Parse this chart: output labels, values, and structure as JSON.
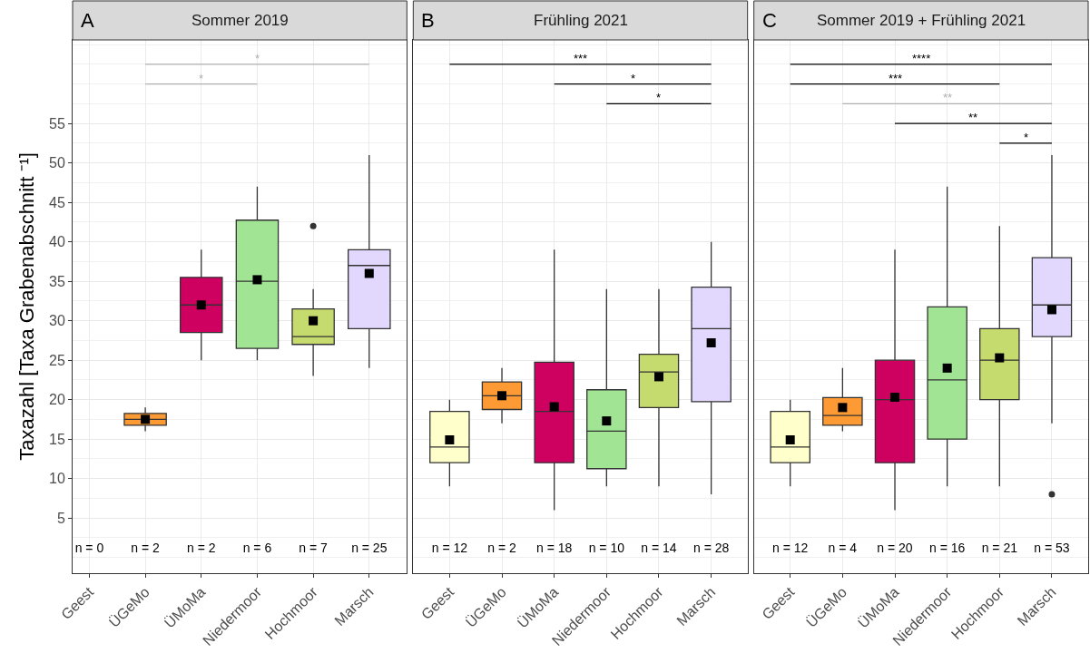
{
  "chart_data": [
    {
      "type": "box",
      "title": "Sommer 2019",
      "ylabel": "Taxazahl [Taxa Grabenabschnitt ⁻¹]",
      "categories": [
        "Geest",
        "ÜGeMo",
        "ÜMoMa",
        "Niedermoor",
        "Hochmoor",
        "Marsch"
      ],
      "colors": [
        null,
        "#fd9a33",
        "#ce0060",
        "#a1e494",
        "#c6db6e",
        "#e2d8fe"
      ],
      "boxes": [
        null,
        {
          "low": 16,
          "q1": 16.75,
          "median": 17.5,
          "q3": 18.25,
          "high": 19,
          "mean": 17.5
        },
        {
          "low": 25,
          "q1": 28.5,
          "median": 32,
          "q3": 35.5,
          "high": 39,
          "mean": 32
        },
        {
          "low": 25,
          "q1": 26.5,
          "median": 35,
          "q3": 42.75,
          "high": 47,
          "mean": 35.2
        },
        {
          "low": 23,
          "q1": 27,
          "median": 28,
          "q3": 31.5,
          "high": 34,
          "mean": 30,
          "outliers": [
            42
          ]
        },
        {
          "low": 24,
          "q1": 29,
          "median": 37,
          "q3": 39,
          "high": 51,
          "mean": 36
        }
      ],
      "series": [
        {
          "type": "line",
          "x": [
            "ÜGeMo",
            "Marsch"
          ],
          "values": [
            62.5,
            62.5
          ],
          "color": "#b0b0b0",
          "marker": "none"
        },
        {
          "type": "line",
          "x": [
            "ÜGeMo",
            "Niedermoor"
          ],
          "values": [
            60,
            60
          ],
          "color": "#b0b0b0",
          "marker": "none"
        }
      ],
      "annotations": [
        "A",
        "n = 0",
        "n = 2",
        "n = 2",
        "n = 6",
        "n = 7",
        "n = 25",
        {
          "text": "*",
          "x": "Niedermoor",
          "y": 62.5
        },
        {
          "text": "*",
          "x": "ÜMoMa",
          "y": 60
        }
      ],
      "ylim": [
        -2,
        65.6
      ],
      "yticks": [
        5,
        10,
        15,
        20,
        25,
        30,
        35,
        40,
        45,
        50,
        55
      ],
      "grid": true,
      "marker": "square"
    },
    {
      "type": "box",
      "title": "Frühling 2021",
      "categories": [
        "Geest",
        "ÜGeMo",
        "ÜMoMa",
        "Niedermoor",
        "Hochmoor",
        "Marsch"
      ],
      "colors": [
        "#ffffcc",
        "#fd9a33",
        "#ce0060",
        "#a1e494",
        "#c6db6e",
        "#e2d8fe"
      ],
      "boxes": [
        {
          "low": 9,
          "q1": 12,
          "median": 14,
          "q3": 18.5,
          "high": 20,
          "mean": 14.9
        },
        {
          "low": 17,
          "q1": 18.75,
          "median": 20.5,
          "q3": 22.25,
          "high": 24,
          "mean": 20.5
        },
        {
          "low": 6,
          "q1": 12,
          "median": 18.5,
          "q3": 24.75,
          "high": 39,
          "mean": 19.1
        },
        {
          "low": 9,
          "q1": 11.25,
          "median": 16,
          "q3": 21.25,
          "high": 34,
          "mean": 17.3
        },
        {
          "low": 9,
          "q1": 19,
          "median": 23.5,
          "q3": 25.75,
          "high": 34,
          "mean": 22.9
        },
        {
          "low": 8,
          "q1": 19.75,
          "median": 29,
          "q3": 34.25,
          "high": 40,
          "mean": 27.2
        }
      ],
      "series": [
        {
          "type": "line",
          "x": [
            "Geest",
            "Marsch"
          ],
          "values": [
            62.5,
            62.5
          ],
          "color": "#000000",
          "marker": "none"
        },
        {
          "type": "line",
          "x": [
            "ÜMoMa",
            "Marsch"
          ],
          "values": [
            60,
            60
          ],
          "color": "#000000",
          "marker": "none"
        },
        {
          "type": "line",
          "x": [
            "Niedermoor",
            "Marsch"
          ],
          "values": [
            57.5,
            57.5
          ],
          "color": "#000000",
          "marker": "none"
        }
      ],
      "annotations": [
        "B",
        "n = 12",
        "n = 2",
        "n = 18",
        "n = 10",
        "n = 14",
        "n = 28",
        {
          "text": "***",
          "y": 62.5
        },
        {
          "text": "*",
          "y": 60
        },
        {
          "text": "*",
          "x": "Hochmoor",
          "y": 57.5
        }
      ],
      "ylim": [
        -2,
        65.6
      ],
      "yticks": [
        5,
        10,
        15,
        20,
        25,
        30,
        35,
        40,
        45,
        50,
        55
      ],
      "grid": true,
      "marker": "square",
      "tick_labels": "x"
    },
    {
      "type": "box",
      "title": "Sommer 2019 + Frühling 2021",
      "categories": [
        "Geest",
        "ÜGeMo",
        "ÜMoMa",
        "Niedermoor",
        "Hochmoor",
        "Marsch"
      ],
      "colors": [
        "#ffffcc",
        "#fd9a33",
        "#ce0060",
        "#a1e494",
        "#c6db6e",
        "#e2d8fe"
      ],
      "boxes": [
        {
          "low": 9,
          "q1": 12,
          "median": 14,
          "q3": 18.5,
          "high": 20,
          "mean": 14.9
        },
        {
          "low": 16,
          "q1": 16.75,
          "median": 18,
          "q3": 20.25,
          "high": 24,
          "mean": 19
        },
        {
          "low": 6,
          "q1": 12,
          "median": 20,
          "q3": 25,
          "high": 39,
          "mean": 20.3
        },
        {
          "low": 9,
          "q1": 15,
          "median": 22.5,
          "q3": 31.75,
          "high": 47,
          "mean": 24
        },
        {
          "low": 9,
          "q1": 20,
          "median": 25,
          "q3": 29,
          "high": 42,
          "mean": 25.3
        },
        {
          "low": 17,
          "q1": 28,
          "median": 32,
          "q3": 38,
          "high": 51,
          "mean": 31.4,
          "outliers": [
            8
          ]
        }
      ],
      "series": [
        {
          "type": "line",
          "x": [
            "Geest",
            "Marsch"
          ],
          "values": [
            62.5,
            62.5
          ],
          "color": "#000000",
          "marker": "none"
        },
        {
          "type": "line",
          "x": [
            "Geest",
            "Hochmoor"
          ],
          "values": [
            60,
            60
          ],
          "color": "#000000",
          "marker": "none"
        },
        {
          "type": "line",
          "x": [
            "ÜGeMo",
            "Marsch"
          ],
          "values": [
            57.5,
            57.5
          ],
          "color": "#b0b0b0",
          "marker": "none"
        },
        {
          "type": "line",
          "x": [
            "ÜMoMa",
            "Marsch"
          ],
          "values": [
            55,
            55
          ],
          "color": "#000000",
          "marker": "none"
        },
        {
          "type": "line",
          "x": [
            "Hochmoor",
            "Marsch"
          ],
          "values": [
            52.5,
            52.5
          ],
          "color": "#000000",
          "marker": "none"
        }
      ],
      "annotations": [
        "C",
        "n = 12",
        "n = 4",
        "n = 20",
        "n = 16",
        "n = 21",
        "n = 53",
        {
          "text": "****",
          "y": 62.5
        },
        {
          "text": "***",
          "x": "ÜMoMa",
          "y": 60
        },
        {
          "text": "**",
          "x": "Niedermoor",
          "y": 57.5
        },
        {
          "text": "**",
          "y": 55
        },
        {
          "text": "*",
          "y": 52.5
        }
      ],
      "ylim": [
        -2,
        65.6
      ],
      "yticks": [
        5,
        10,
        15,
        20,
        25,
        30,
        35,
        40,
        45,
        50,
        55
      ],
      "grid": true,
      "marker": "square",
      "tick_labels": "x"
    }
  ]
}
